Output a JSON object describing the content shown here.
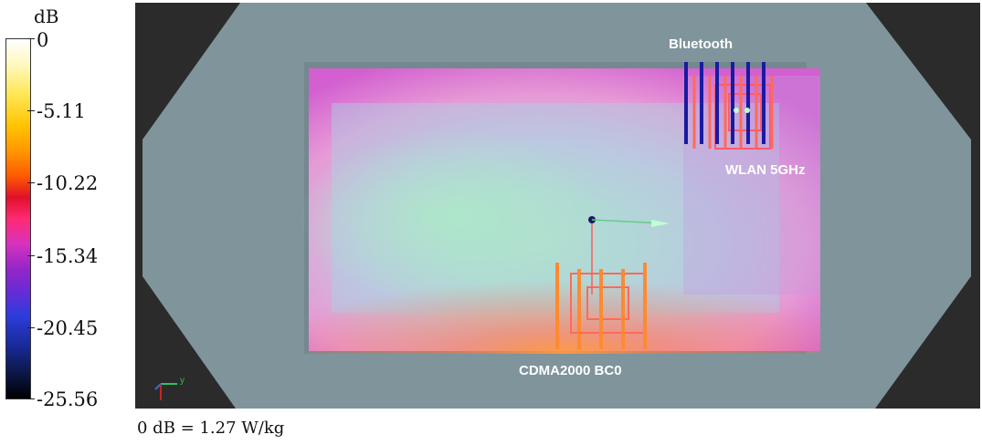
{
  "colorbar": {
    "unit": "dB",
    "ticks": [
      "0",
      "-5.11",
      "-10.22",
      "-15.34",
      "-20.45",
      "-25.56"
    ]
  },
  "annotations": {
    "bluetooth": "Bluetooth",
    "wlan": "WLAN 5GHz",
    "cdma": "CDMA2000 BC0"
  },
  "axes_indicator": "y",
  "caption": "0 dB = 1.27 W/kg"
}
